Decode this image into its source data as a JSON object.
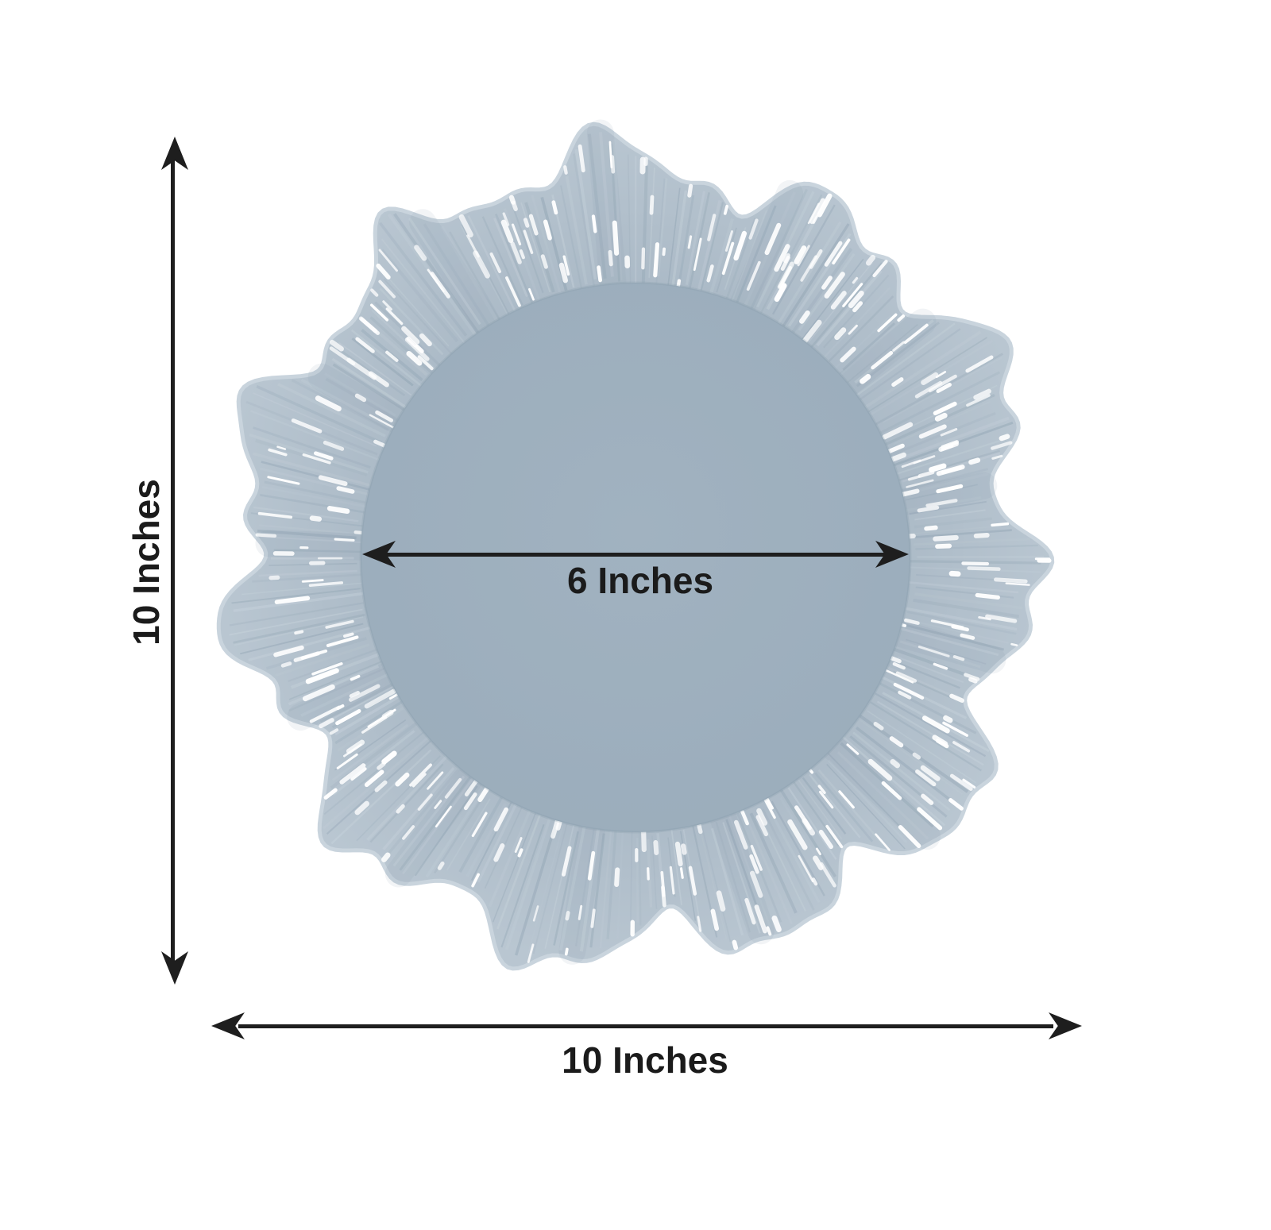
{
  "page": {
    "background_color": "#ffffff"
  },
  "diagram": {
    "arrow_color": "#1e1e1e",
    "text_color": "#1b1b1b",
    "plate": {
      "icon": "reef-scalloped-charger-plate",
      "rim_inner_color": "#a9b8c5",
      "rim_outer_color": "#b9c6d1",
      "rim_light_color": "#d2dce3",
      "rim_shadow_color": "#7f95a6",
      "edge_color": "#c9d4dd",
      "center_color": "#a1b2c0",
      "center_edge_color": "#9badbc",
      "highlight_color": "#ffffff"
    },
    "dimensions": {
      "height": {
        "label": "10 Inches"
      },
      "inner_diameter": {
        "label": "6 Inches"
      },
      "width": {
        "label": "10 Inches"
      }
    }
  }
}
